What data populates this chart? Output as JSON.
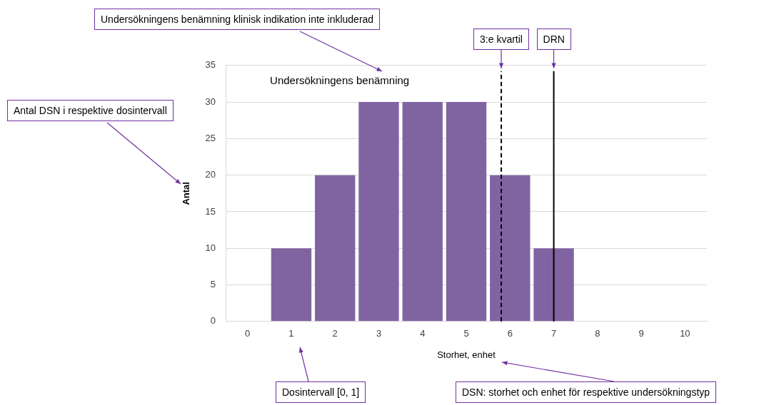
{
  "chart_data": {
    "type": "bar",
    "title": "Undersökningens benämning",
    "xlabel": "Storhet, enhet",
    "ylabel": "Antal",
    "x": [
      0,
      1,
      2,
      3,
      4,
      5,
      6,
      7,
      8,
      9,
      10
    ],
    "values": [
      0,
      10,
      20,
      30,
      30,
      30,
      20,
      10,
      0,
      0,
      0
    ],
    "color": "#8064a2",
    "xlim": [
      -0.5,
      10.5
    ],
    "xticks": [
      0,
      1,
      2,
      3,
      4,
      5,
      6,
      7,
      8,
      9,
      10
    ],
    "ylim": [
      0,
      35
    ],
    "yticks": [
      0,
      5,
      10,
      15,
      20,
      25,
      30,
      35
    ],
    "grid": "y",
    "legend": false,
    "ref_lines": [
      {
        "axis": "x",
        "value": 5.8,
        "label": "3:e kvartil",
        "color": "#000000",
        "line_style": "dashed"
      },
      {
        "axis": "x",
        "value": 7,
        "label": "DRN",
        "color": "#000000",
        "line_style": "solid"
      }
    ],
    "annotations": [
      "Undersökningens benämning klinisk indikation inte inkluderad",
      "Antal DSN i respektive dosintervall",
      "Dosintervall [0, 1]",
      "DSN: storhet och enhet för respektive undersökningstyp"
    ]
  }
}
